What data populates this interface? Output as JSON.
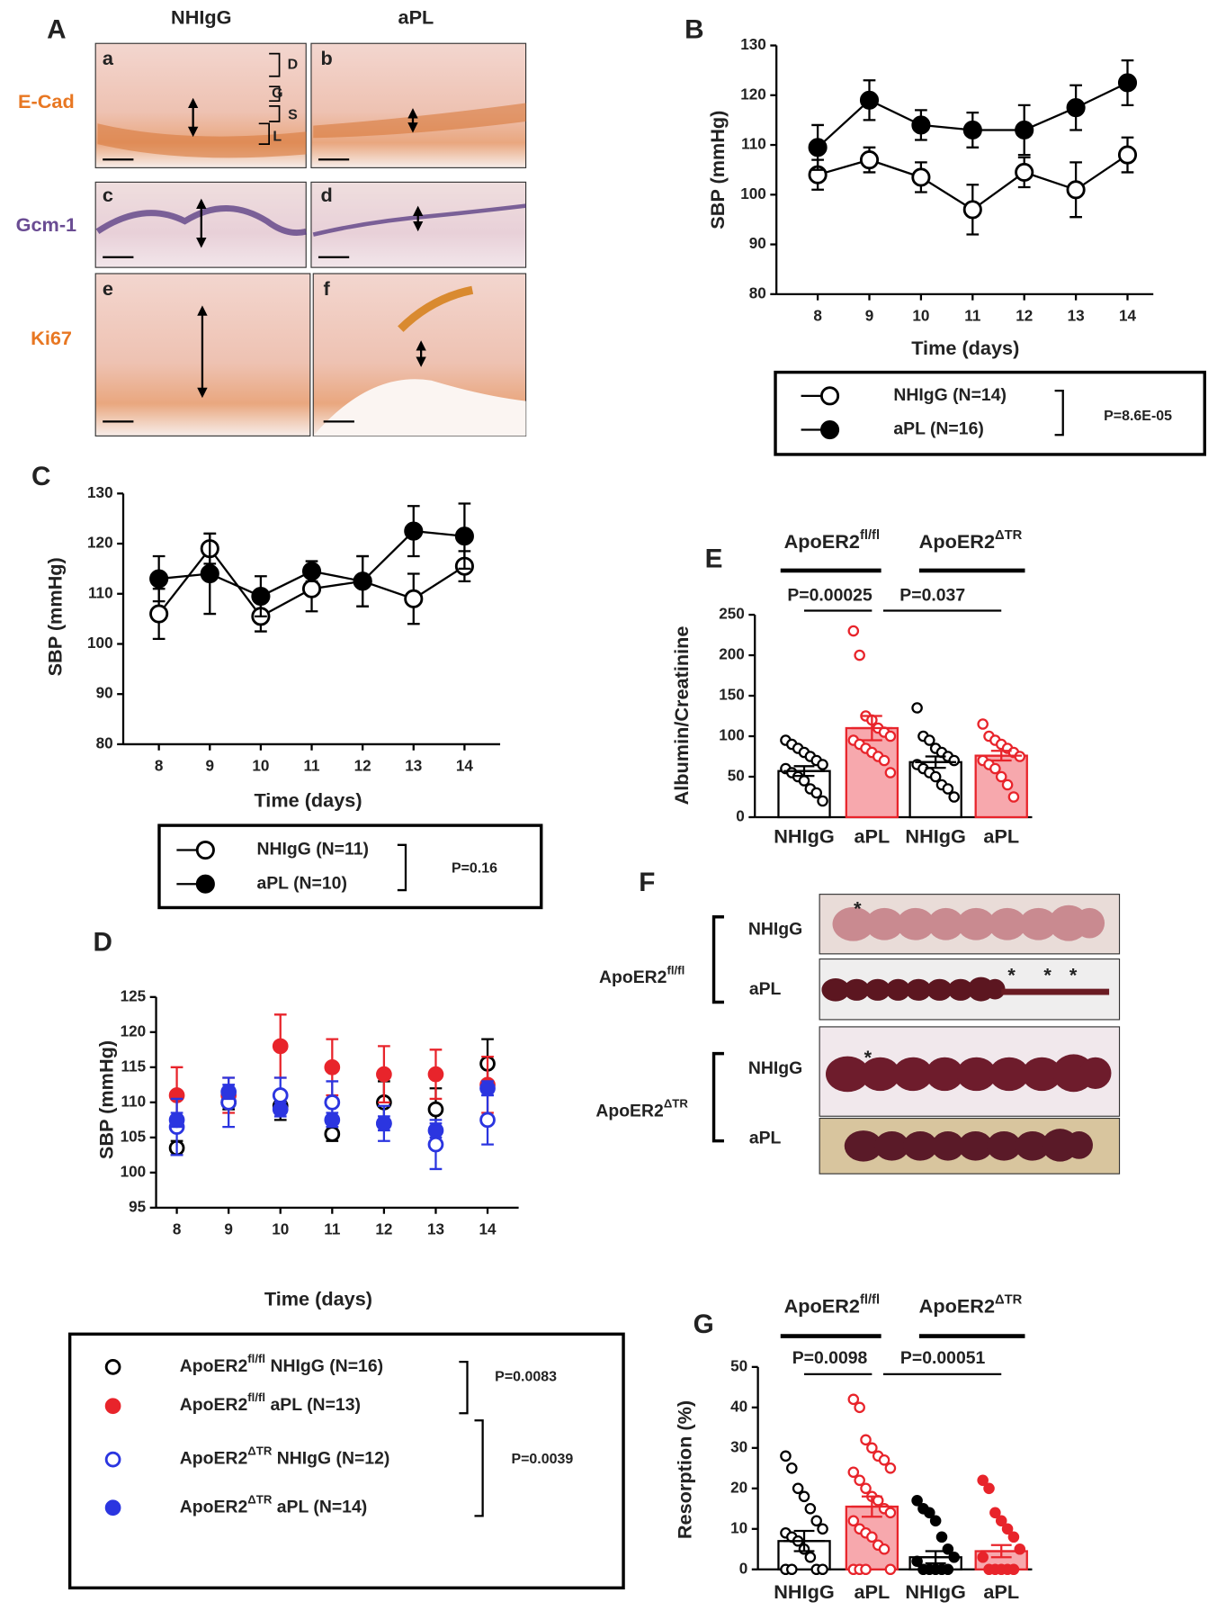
{
  "panel_a": {
    "label": "A",
    "columns": [
      "NHIgG",
      "aPL"
    ],
    "rows": [
      "E-Cad",
      "Gcm-1",
      "Ki67"
    ],
    "images": [
      "a",
      "b",
      "c",
      "d",
      "e",
      "f"
    ],
    "layers": [
      "D",
      "G",
      "S",
      "L"
    ]
  },
  "panel_f": {
    "label": "F",
    "rows": [
      {
        "group": [
          "ApoER2",
          "fl/fl"
        ],
        "treatments": [
          "NHIgG",
          "aPL"
        ]
      },
      {
        "group": [
          "ApoER2",
          "ΔTR"
        ],
        "treatments": [
          "NHIgG",
          "aPL"
        ]
      }
    ],
    "asterisks": [
      "*",
      "*",
      "*",
      "*",
      "*"
    ]
  },
  "chart_data": [
    {
      "type": "line",
      "label": "B",
      "xlabel": "Time (days)",
      "ylabel": "SBP (mmHg)",
      "x": [
        8,
        9,
        10,
        11,
        12,
        13,
        14
      ],
      "xlim": [
        7.2,
        14.5
      ],
      "xticks": [
        8,
        9,
        10,
        11,
        12,
        13,
        14
      ],
      "ylim": [
        80,
        130
      ],
      "yticks": [
        80,
        90,
        100,
        110,
        120,
        130
      ],
      "series": [
        {
          "name": "NHIgG (N=14)",
          "color": "#000000",
          "marker": "open",
          "values": [
            104,
            107,
            103.5,
            97,
            104.5,
            101,
            108
          ],
          "errors": [
            3,
            2.5,
            3,
            5,
            3,
            5.5,
            3.5
          ]
        },
        {
          "name": "aPL (N=16)",
          "color": "#000000",
          "marker": "filled",
          "values": [
            109.5,
            119,
            114,
            113,
            113,
            117.5,
            122.5
          ],
          "errors": [
            4.5,
            4,
            3,
            3.5,
            5,
            4.5,
            4.5
          ]
        }
      ],
      "p_values": [
        "P=8.6E-05"
      ]
    },
    {
      "type": "line",
      "label": "C",
      "xlabel": "Time (days)",
      "ylabel": "SBP (mmHg)",
      "x": [
        8,
        9,
        10,
        11,
        12,
        13,
        14
      ],
      "xlim": [
        7.3,
        14.7
      ],
      "xticks": [
        8,
        9,
        10,
        11,
        12,
        13,
        14
      ],
      "ylim": [
        80,
        130
      ],
      "yticks": [
        80,
        90,
        100,
        110,
        120,
        130
      ],
      "series": [
        {
          "name": "NHIgG (N=11)",
          "color": "#000000",
          "marker": "open",
          "values": [
            106,
            119,
            105.5,
            111,
            112.5,
            109,
            115.5
          ],
          "errors": [
            5,
            3,
            3,
            4.5,
            5,
            5,
            3
          ]
        },
        {
          "name": "aPL (N=10)",
          "color": "#000000",
          "marker": "filled",
          "values": [
            113,
            114,
            109.5,
            114.5,
            112.5,
            122.5,
            121.5
          ],
          "errors": [
            4.5,
            8,
            4,
            2,
            5,
            5,
            6.5
          ]
        }
      ],
      "p_values": [
        "P=0.16"
      ]
    },
    {
      "type": "scatter",
      "label": "D",
      "xlabel": "Time (days)",
      "ylabel": "SBP (mmHg)",
      "x": [
        8,
        9,
        10,
        11,
        12,
        13,
        14
      ],
      "xlim": [
        7.6,
        14.6
      ],
      "xticks": [
        8,
        9,
        10,
        11,
        12,
        13,
        14
      ],
      "ylim": [
        95,
        125
      ],
      "yticks": [
        95,
        100,
        105,
        110,
        115,
        120,
        125
      ],
      "series": [
        {
          "name": [
            "ApoER2",
            "fl/fl",
            " NHIgG (N=16)"
          ],
          "color": "#000000",
          "marker": "open",
          "values": [
            103.5,
            110,
            109.5,
            105.5,
            110,
            109,
            115.5
          ],
          "errors": [
            1,
            1,
            2,
            1,
            3,
            3,
            3.5
          ]
        },
        {
          "name": [
            "ApoER2",
            "fl/fl",
            " aPL (N=13)"
          ],
          "color": "#e8242b",
          "marker": "filled",
          "values": [
            111,
            111,
            118,
            115,
            114,
            114,
            112.5
          ],
          "errors": [
            4,
            2.5,
            4.5,
            4,
            4,
            3.5,
            4
          ]
        },
        {
          "name": [
            "ApoER2",
            "ΔTR",
            " NHIgG (N=12)"
          ],
          "color": "#2b35e0",
          "marker": "open",
          "values": [
            106.5,
            110,
            111,
            110,
            107,
            104,
            107.5
          ],
          "errors": [
            4,
            3.5,
            2.5,
            3,
            2.5,
            3.5,
            3.5
          ]
        },
        {
          "name": [
            "ApoER2",
            "ΔTR",
            " aPL (N=14)"
          ],
          "color": "#2b35e0",
          "marker": "filled",
          "values": [
            107.5,
            111.5,
            109,
            107.5,
            107,
            106,
            112
          ],
          "errors": [
            1,
            1,
            1,
            1,
            1,
            1,
            1
          ]
        }
      ],
      "p_values": [
        "P=0.0083",
        "P=0.0039"
      ]
    },
    {
      "type": "bar",
      "label": "E",
      "ylabel": "Albumin/Creatinine",
      "categories": [
        "NHIgG",
        "aPL",
        "NHIgG",
        "aPL"
      ],
      "group_labels": [
        [
          "ApoER2",
          "fl/fl"
        ],
        [
          "ApoER2",
          "ΔTR"
        ]
      ],
      "p_values": [
        "P=0.00025",
        "P=0.037"
      ],
      "ylim": [
        0,
        250
      ],
      "yticks": [
        0,
        50,
        100,
        150,
        200,
        250
      ],
      "values": [
        57,
        110,
        68,
        76
      ],
      "errors": [
        6,
        15,
        7,
        6
      ],
      "colors": [
        "#000000",
        "#e8242b",
        "#000000",
        "#e8242b"
      ],
      "fills": [
        "#ffffff",
        "#f7a8ad",
        "#ffffff",
        "#f7a8ad"
      ],
      "points_filled": [
        false,
        false,
        false,
        false
      ],
      "points": [
        [
          95,
          90,
          85,
          80,
          75,
          70,
          65,
          60,
          55,
          50,
          45,
          35,
          30,
          20
        ],
        [
          230,
          200,
          125,
          120,
          110,
          105,
          100,
          95,
          90,
          85,
          80,
          75,
          70,
          55
        ],
        [
          135,
          100,
          95,
          85,
          80,
          75,
          70,
          65,
          60,
          55,
          50,
          40,
          35,
          25
        ],
        [
          115,
          100,
          95,
          90,
          85,
          80,
          75,
          70,
          65,
          60,
          50,
          40,
          25
        ]
      ]
    },
    {
      "type": "bar",
      "label": "G",
      "ylabel": "Resorption (%)",
      "categories": [
        "NHIgG",
        "aPL",
        "NHIgG",
        "aPL"
      ],
      "group_labels": [
        [
          "ApoER2",
          "fl/fl"
        ],
        [
          "ApoER2",
          "ΔTR"
        ]
      ],
      "p_values": [
        "P=0.0098",
        "P=0.00051"
      ],
      "ylim": [
        0,
        50
      ],
      "yticks": [
        0,
        10,
        20,
        30,
        40,
        50
      ],
      "values": [
        7,
        15.5,
        3,
        4.5
      ],
      "errors": [
        2.5,
        2.5,
        1.5,
        1.5
      ],
      "colors": [
        "#000000",
        "#e8242b",
        "#000000",
        "#e8242b"
      ],
      "fills": [
        "#ffffff",
        "#f7a8ad",
        "#ffffff",
        "#f7a8ad"
      ],
      "points_filled": [
        false,
        false,
        true,
        true
      ],
      "points": [
        [
          28,
          25,
          20,
          18,
          15,
          12,
          10,
          9,
          8,
          7,
          5,
          3,
          0,
          0,
          0,
          0
        ],
        [
          42,
          40,
          32,
          30,
          28,
          27,
          25,
          24,
          22,
          20,
          18,
          17,
          15,
          14,
          12,
          10,
          9,
          8,
          6,
          5,
          0,
          0,
          0,
          0
        ],
        [
          17,
          15,
          14,
          12,
          8,
          5,
          3,
          2,
          0,
          0,
          0,
          0,
          0
        ],
        [
          22,
          20,
          14,
          12,
          10,
          8,
          5,
          3,
          0,
          0,
          0,
          0,
          0
        ]
      ]
    }
  ]
}
